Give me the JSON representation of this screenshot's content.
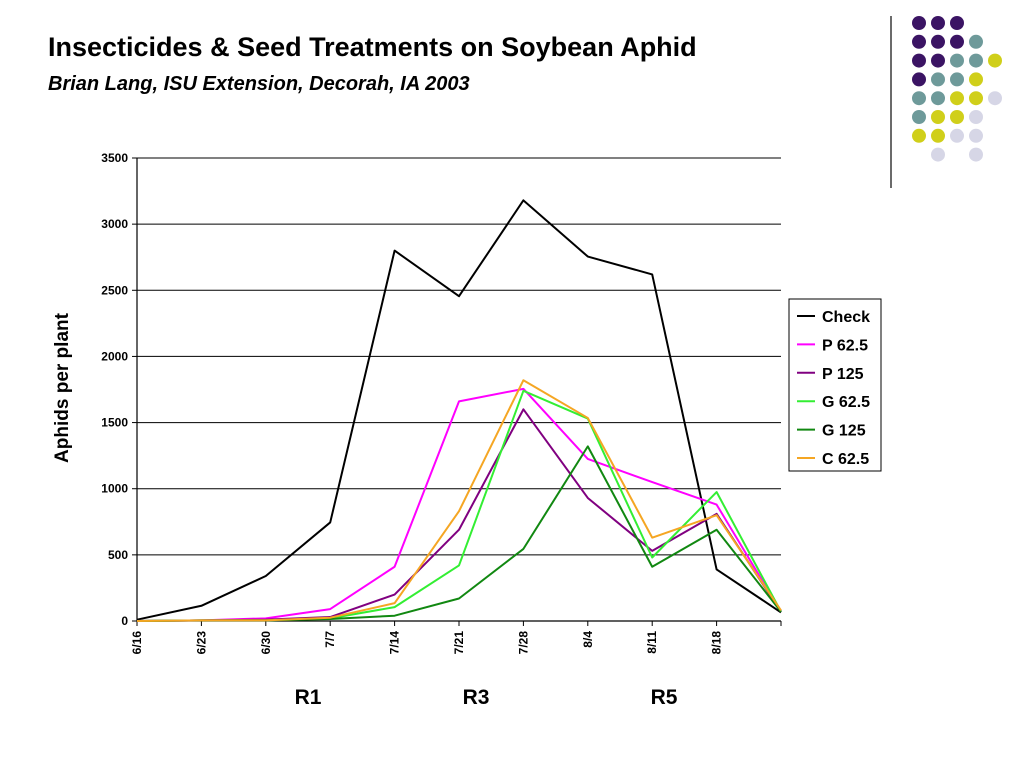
{
  "colors": {
    "dot_dark": "#3b1464",
    "dot_teal": "#6e9a9a",
    "dot_yellow": "#d0cf1a",
    "dot_lavender": "#d6d6e6"
  },
  "chart_data": {
    "type": "line",
    "title": "Insecticides & Seed Treatments on Soybean Aphid",
    "subtitle": "Brian Lang, ISU Extension, Decorah, IA 2003",
    "xlabel": "",
    "ylabel": "Aphids per plant",
    "categories": [
      "6/16",
      "6/23",
      "6/30",
      "7/7",
      "7/14",
      "7/21",
      "7/28",
      "8/4",
      "8/11",
      "8/18",
      ""
    ],
    "ylim": [
      0,
      3500
    ],
    "yticks": [
      0,
      500,
      1000,
      1500,
      2000,
      2500,
      3000,
      3500
    ],
    "grid": "horizontal",
    "legend": "right",
    "stage_labels": [
      "R1",
      "R3",
      "R5"
    ],
    "series": [
      {
        "name": "Check",
        "color": "#000000",
        "values": [
          10,
          115,
          340,
          745,
          2800,
          2455,
          3180,
          2755,
          2620,
          390,
          65
        ]
      },
      {
        "name": "P 62.5",
        "color": "#ff00ff",
        "values": [
          0,
          5,
          20,
          90,
          410,
          1660,
          1755,
          1225,
          1050,
          880,
          70
        ]
      },
      {
        "name": "P 125",
        "color": "#800080",
        "values": [
          0,
          5,
          10,
          30,
          200,
          690,
          1600,
          930,
          530,
          810,
          70
        ]
      },
      {
        "name": "G 62.5",
        "color": "#33ee33",
        "values": [
          0,
          5,
          5,
          20,
          105,
          420,
          1740,
          1530,
          480,
          975,
          70
        ]
      },
      {
        "name": "G 125",
        "color": "#118811",
        "values": [
          0,
          5,
          5,
          15,
          40,
          170,
          545,
          1320,
          410,
          690,
          70
        ]
      },
      {
        "name": "C 62.5",
        "color": "#f5a623",
        "values": [
          0,
          5,
          5,
          25,
          135,
          830,
          1820,
          1535,
          630,
          800,
          80
        ]
      }
    ]
  }
}
